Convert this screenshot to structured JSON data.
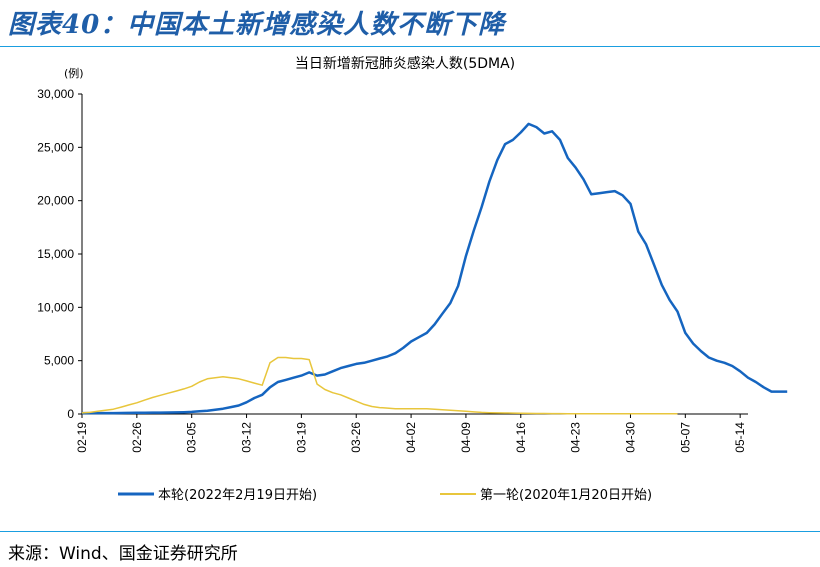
{
  "figure": {
    "title": "图表40：中国本土新增感染人数不断下降",
    "source": "来源：Wind、国金证券研究所"
  },
  "chart_data": {
    "type": "line",
    "title": "当日新增新冠肺炎感染人数(5DMA)",
    "unit_label": "(例)",
    "ylim": [
      0,
      30000
    ],
    "yticks": [
      "0",
      "5,000",
      "10,000",
      "15,000",
      "20,000",
      "25,000",
      "30,000"
    ],
    "ytick_values": [
      0,
      5000,
      10000,
      15000,
      20000,
      25000,
      30000
    ],
    "xticks": [
      "02-19",
      "02-26",
      "03-05",
      "03-12",
      "03-19",
      "03-26",
      "04-02",
      "04-09",
      "04-16",
      "04-23",
      "04-30",
      "05-07",
      "05-14"
    ],
    "x_start": "02-19",
    "x_end": "05-14",
    "grid": false,
    "legend_position": "bottom",
    "colors": {
      "series1": "#1565c0",
      "series2": "#e8c63c",
      "accent": "#1f5ea8",
      "rule": "#1a9ee0"
    },
    "series": [
      {
        "name": "本轮(2022年2月19日开始)",
        "values": [
          80,
          80,
          80,
          80,
          80,
          90,
          100,
          110,
          120,
          130,
          130,
          140,
          150,
          170,
          200,
          250,
          300,
          400,
          500,
          650,
          800,
          1100,
          1500,
          1800,
          2500,
          3000,
          3200,
          3400,
          3600,
          3900,
          3600,
          3700,
          4000,
          4300,
          4500,
          4700,
          4800,
          5000,
          5200,
          5400,
          5700,
          6200,
          6800,
          7200,
          7600,
          8400,
          9400,
          10400,
          12000,
          14800,
          17200,
          19400,
          21800,
          23800,
          25300,
          25700,
          26400,
          27200,
          26900,
          26300,
          26500,
          25700,
          24000,
          23100,
          22000,
          20600,
          20700,
          20800,
          20900,
          20500,
          19700,
          17100,
          15900,
          14000,
          12100,
          10700,
          9600,
          7600,
          6600,
          5900,
          5300,
          5000,
          4800,
          4500,
          4000,
          3400,
          3000,
          2500,
          2100,
          2100,
          2100
        ],
        "line_width": 2.5
      },
      {
        "name": "第一轮(2020年1月20日开始)",
        "values": [
          100,
          150,
          250,
          350,
          450,
          650,
          850,
          1050,
          1300,
          1550,
          1750,
          1950,
          2150,
          2350,
          2600,
          3000,
          3300,
          3400,
          3500,
          3400,
          3300,
          3100,
          2900,
          2700,
          4800,
          5300,
          5300,
          5200,
          5200,
          5100,
          2800,
          2300,
          2000,
          1800,
          1500,
          1200,
          900,
          700,
          600,
          550,
          500,
          500,
          500,
          500,
          500,
          450,
          400,
          350,
          300,
          250,
          200,
          150,
          120,
          100,
          90,
          80,
          70,
          60,
          50,
          50,
          40,
          40,
          30,
          30,
          30,
          25,
          25,
          20,
          20,
          20,
          20,
          20,
          20,
          20,
          20,
          20,
          20
        ],
        "line_width": 1.5
      }
    ]
  }
}
